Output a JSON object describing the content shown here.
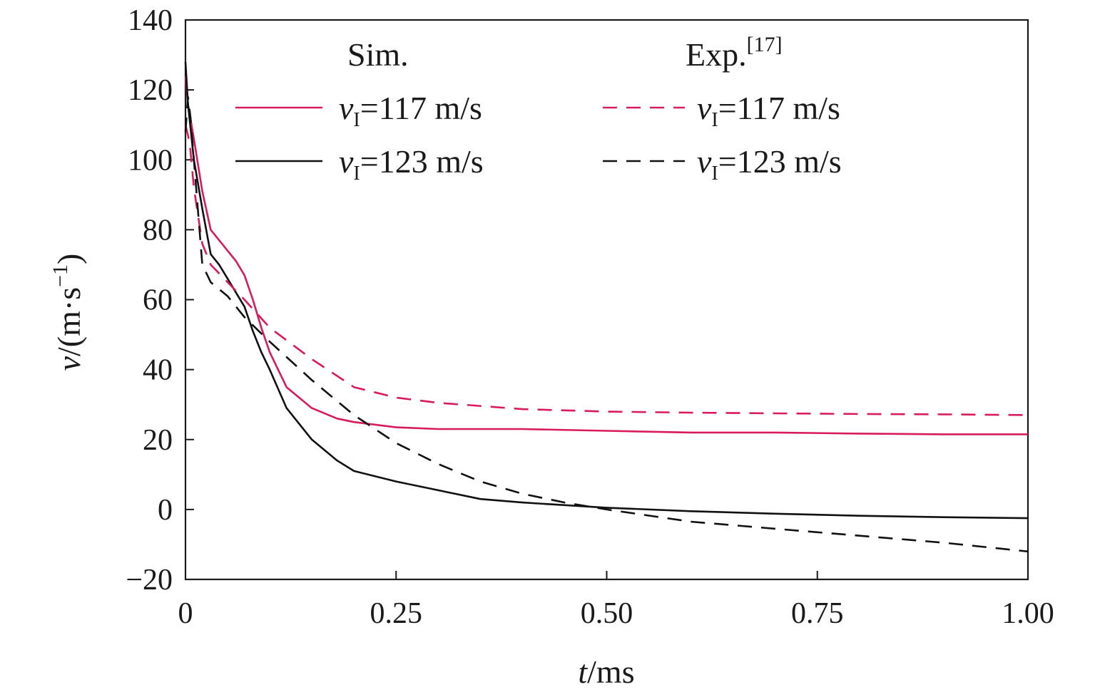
{
  "chart_data": {
    "type": "line",
    "title": "",
    "xlabel": {
      "italic": "t",
      "rest": "/ms"
    },
    "ylabel": {
      "italic": "v",
      "rest": "/(m·s",
      "sup": "−1",
      "close": ")"
    },
    "xlim": [
      0,
      1.0
    ],
    "ylim": [
      -20,
      140
    ],
    "xticks": [
      0,
      0.25,
      0.5,
      0.75,
      1.0
    ],
    "xtick_labels": [
      "0",
      "0.25",
      "0.50",
      "0.75",
      "1.00"
    ],
    "yticks": [
      -20,
      0,
      20,
      40,
      60,
      80,
      100,
      120,
      140
    ],
    "ytick_labels": [
      "−20",
      "0",
      "20",
      "40",
      "60",
      "80",
      "100",
      "120",
      "140"
    ],
    "grid": false,
    "legend": {
      "placement": "top",
      "group_titles": {
        "sim": "Sim.",
        "exp": "Exp.",
        "exp_ref": "[17]"
      },
      "label_prefix": "v",
      "label_sub": "I"
    },
    "colors": {
      "v117": "#d81b5a",
      "v123": "#111111"
    },
    "series": [
      {
        "group": "sim",
        "label_rest": "=117 m/s",
        "color_key": "v117",
        "dash": "solid",
        "x": [
          0,
          0.003,
          0.01,
          0.02,
          0.03,
          0.04,
          0.05,
          0.06,
          0.07,
          0.08,
          0.09,
          0.1,
          0.12,
          0.15,
          0.18,
          0.2,
          0.25,
          0.3,
          0.4,
          0.5,
          0.6,
          0.7,
          0.8,
          0.9,
          1.0
        ],
        "y": [
          124,
          116,
          106,
          91,
          80,
          77,
          74,
          71,
          67,
          60,
          52,
          45,
          35,
          29,
          26,
          25,
          23.5,
          23,
          23,
          22.5,
          22,
          22,
          21.7,
          21.5,
          21.5
        ]
      },
      {
        "group": "sim",
        "label_rest": "=123 m/s",
        "color_key": "v123",
        "dash": "solid",
        "x": [
          0,
          0.003,
          0.01,
          0.02,
          0.03,
          0.04,
          0.05,
          0.06,
          0.07,
          0.08,
          0.09,
          0.1,
          0.12,
          0.15,
          0.18,
          0.2,
          0.25,
          0.3,
          0.35,
          0.4,
          0.5,
          0.6,
          0.7,
          0.8,
          0.9,
          1.0
        ],
        "y": [
          128,
          116,
          100,
          86,
          73,
          70,
          66,
          62,
          58,
          51,
          45,
          40,
          29,
          20,
          14,
          11,
          8,
          5.5,
          3,
          2,
          0.5,
          -0.5,
          -1.2,
          -1.8,
          -2.2,
          -2.5
        ]
      },
      {
        "group": "exp",
        "label_rest": "=117 m/s",
        "color_key": "v117",
        "dash": "dashed",
        "x": [
          0,
          0.005,
          0.01,
          0.02,
          0.03,
          0.05,
          0.07,
          0.1,
          0.15,
          0.2,
          0.25,
          0.3,
          0.4,
          0.5,
          0.6,
          0.7,
          0.8,
          0.9,
          1.0
        ],
        "y": [
          110,
          105,
          92,
          76,
          70,
          65,
          60,
          52,
          43,
          35,
          32,
          30.5,
          28.7,
          28,
          27.7,
          27.5,
          27.3,
          27.2,
          27
        ]
      },
      {
        "group": "exp",
        "label_rest": "=123 m/s",
        "color_key": "v123",
        "dash": "dashed",
        "x": [
          0,
          0.003,
          0.006,
          0.01,
          0.015,
          0.02,
          0.03,
          0.05,
          0.07,
          0.1,
          0.15,
          0.2,
          0.25,
          0.3,
          0.35,
          0.4,
          0.45,
          0.5,
          0.6,
          0.7,
          0.8,
          0.9,
          1.0
        ],
        "y": [
          108,
          118,
          112,
          100,
          85,
          70,
          65,
          61,
          55,
          48,
          37,
          27,
          19,
          13,
          8,
          4.5,
          2,
          0,
          -3.5,
          -5.5,
          -7.5,
          -9.5,
          -12
        ]
      }
    ]
  }
}
